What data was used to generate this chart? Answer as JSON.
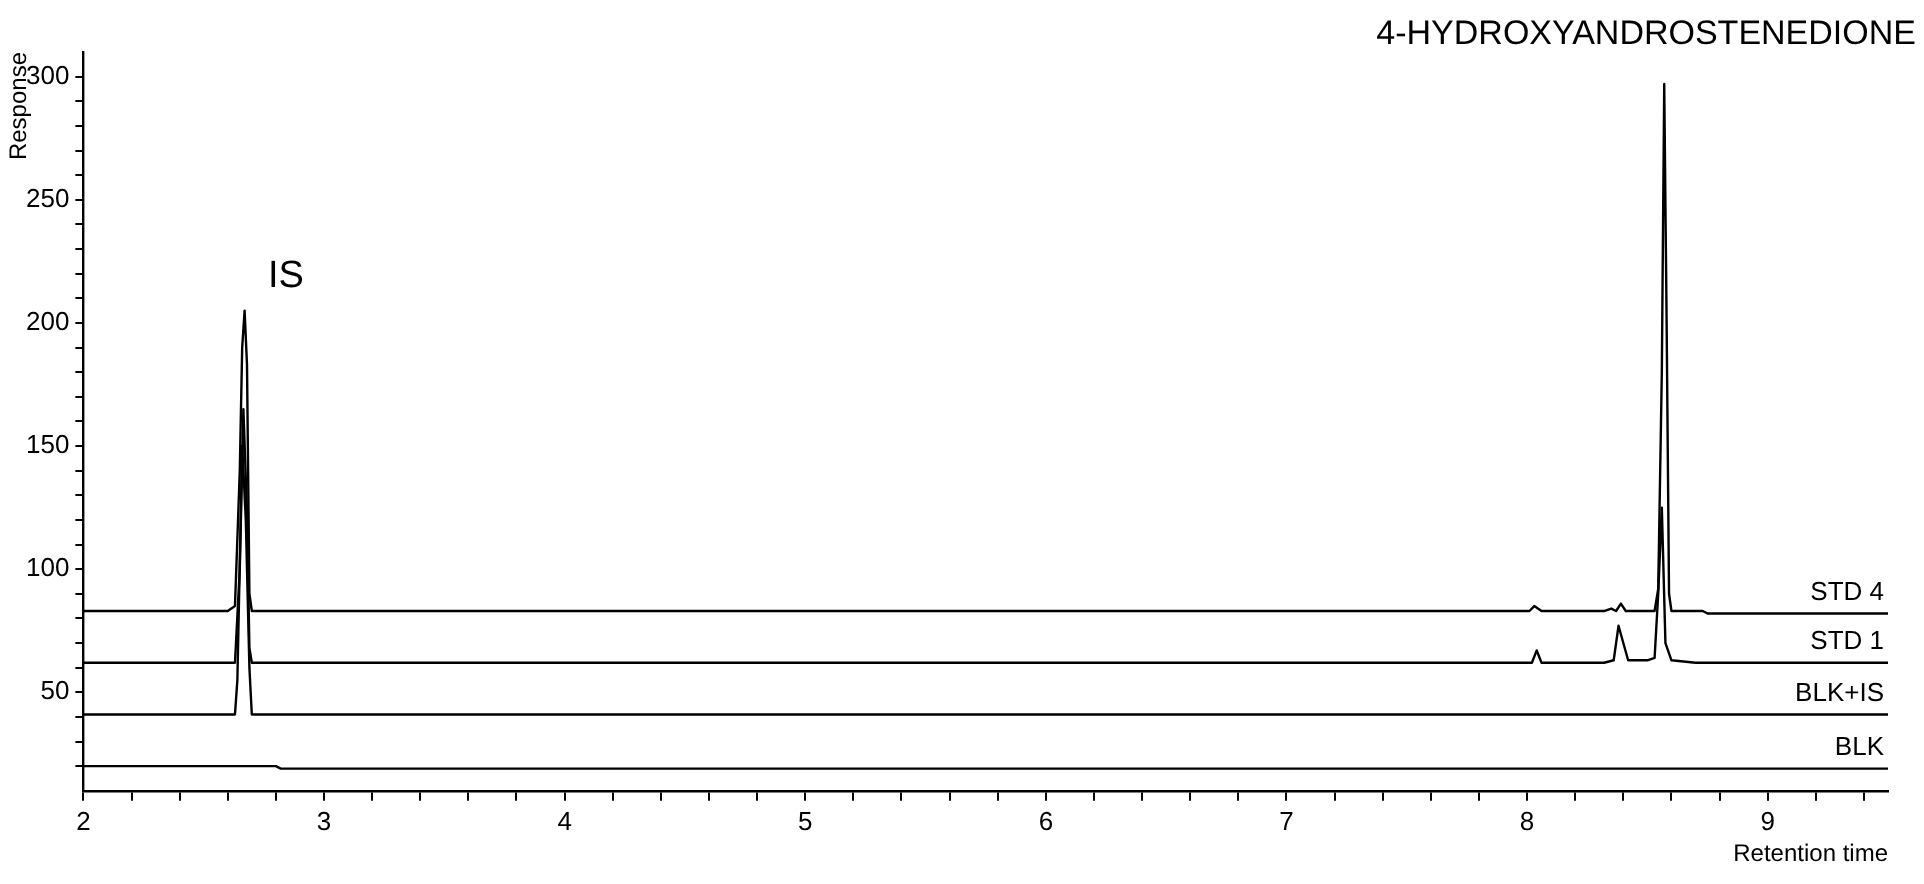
{
  "chart_data": {
    "type": "line",
    "xlabel": "Retention time",
    "ylabel": "Response",
    "marker": "none",
    "grid": false,
    "legend": false,
    "annotations": [
      "IS",
      "4-HYDROXYANDROSTENEDIONE"
    ],
    "xlim": [
      2,
      9.5
    ],
    "ylim": [
      10,
      310
    ],
    "xticks": [
      2,
      {
        "value": 2.2,
        "label": null
      },
      {
        "value": 2.4,
        "label": null
      },
      {
        "value": 2.6,
        "label": null
      },
      {
        "value": 2.8,
        "label": null
      },
      3,
      {
        "value": 3.2,
        "label": null
      },
      {
        "value": 3.4,
        "label": null
      },
      {
        "value": 3.6,
        "label": null
      },
      {
        "value": 3.8,
        "label": null
      },
      4,
      {
        "value": 4.2,
        "label": null
      },
      {
        "value": 4.4,
        "label": null
      },
      {
        "value": 4.6,
        "label": null
      },
      {
        "value": 4.8,
        "label": null
      },
      5,
      {
        "value": 5.2,
        "label": null
      },
      {
        "value": 5.4,
        "label": null
      },
      {
        "value": 5.6,
        "label": null
      },
      {
        "value": 5.8,
        "label": null
      },
      6,
      {
        "value": 6.2,
        "label": null
      },
      {
        "value": 6.4,
        "label": null
      },
      {
        "value": 6.6,
        "label": null
      },
      {
        "value": 6.8,
        "label": null
      },
      7,
      {
        "value": 7.2,
        "label": null
      },
      {
        "value": 7.4,
        "label": null
      },
      {
        "value": 7.6,
        "label": null
      },
      {
        "value": 7.8,
        "label": null
      },
      8,
      {
        "value": 8.2,
        "label": null
      },
      {
        "value": 8.4,
        "label": null
      },
      {
        "value": 8.6,
        "label": null
      },
      {
        "value": 8.8,
        "label": null
      },
      9,
      {
        "value": 9.2,
        "label": null
      },
      {
        "value": 9.4,
        "label": null
      }
    ],
    "yticks": [
      {
        "value": 20,
        "label": null
      },
      {
        "value": 30,
        "label": null
      },
      {
        "value": 40,
        "label": null
      },
      50,
      {
        "value": 60,
        "label": null
      },
      {
        "value": 70,
        "label": null
      },
      {
        "value": 80,
        "label": null
      },
      {
        "value": 90,
        "label": null
      },
      100,
      {
        "value": 110,
        "label": null
      },
      {
        "value": 120,
        "label": null
      },
      {
        "value": 130,
        "label": null
      },
      {
        "value": 140,
        "label": null
      },
      150,
      {
        "value": 160,
        "label": null
      },
      {
        "value": 170,
        "label": null
      },
      {
        "value": 180,
        "label": null
      },
      {
        "value": 190,
        "label": null
      },
      200,
      {
        "value": 210,
        "label": null
      },
      {
        "value": 220,
        "label": null
      },
      {
        "value": 230,
        "label": null
      },
      {
        "value": 240,
        "label": null
      },
      250,
      {
        "value": 260,
        "label": null
      },
      {
        "value": 270,
        "label": null
      },
      {
        "value": 280,
        "label": null
      },
      {
        "value": 290,
        "label": null
      },
      300
    ],
    "series": [
      {
        "name": "STD 4",
        "color": "#000000",
        "x": [
          2,
          2.6,
          2.63,
          2.65,
          2.66,
          2.67,
          2.68,
          2.69,
          2.7,
          8.01,
          8.03,
          8.06,
          8.32,
          8.35,
          8.37,
          8.39,
          8.41,
          8.53,
          8.545,
          8.56,
          8.57,
          8.58,
          8.59,
          8.6,
          8.73,
          8.75,
          9.5
        ],
        "values": [
          83,
          83,
          85,
          140,
          190,
          205,
          183,
          90,
          83,
          83,
          85,
          83,
          83,
          84,
          83,
          86,
          83,
          83,
          92,
          180,
          297,
          200,
          90,
          83,
          83,
          82,
          82
        ]
      },
      {
        "name": "STD 1",
        "color": "#000000",
        "x": [
          2,
          2.63,
          2.65,
          2.665,
          2.68,
          2.69,
          2.7,
          8.02,
          8.04,
          8.06,
          8.32,
          8.36,
          8.38,
          8.4,
          8.42,
          8.5,
          8.53,
          8.545,
          8.56,
          8.575,
          8.6,
          8.7,
          9.5
        ],
        "values": [
          62,
          62,
          100,
          165,
          123,
          68,
          62,
          62,
          67,
          62,
          62,
          63,
          77,
          70,
          63,
          63,
          64,
          90,
          125,
          70,
          63,
          62,
          62
        ]
      },
      {
        "name": "BLK+IS",
        "color": "#000000",
        "x": [
          2,
          2.63,
          2.64,
          2.66,
          2.675,
          2.69,
          2.7,
          9.5
        ],
        "values": [
          41,
          41,
          55,
          150,
          120,
          60,
          41,
          41
        ]
      },
      {
        "name": "BLK",
        "color": "#000000",
        "x": [
          2,
          2.8,
          2.82,
          9.5
        ],
        "values": [
          20,
          20,
          19,
          19
        ]
      }
    ]
  }
}
